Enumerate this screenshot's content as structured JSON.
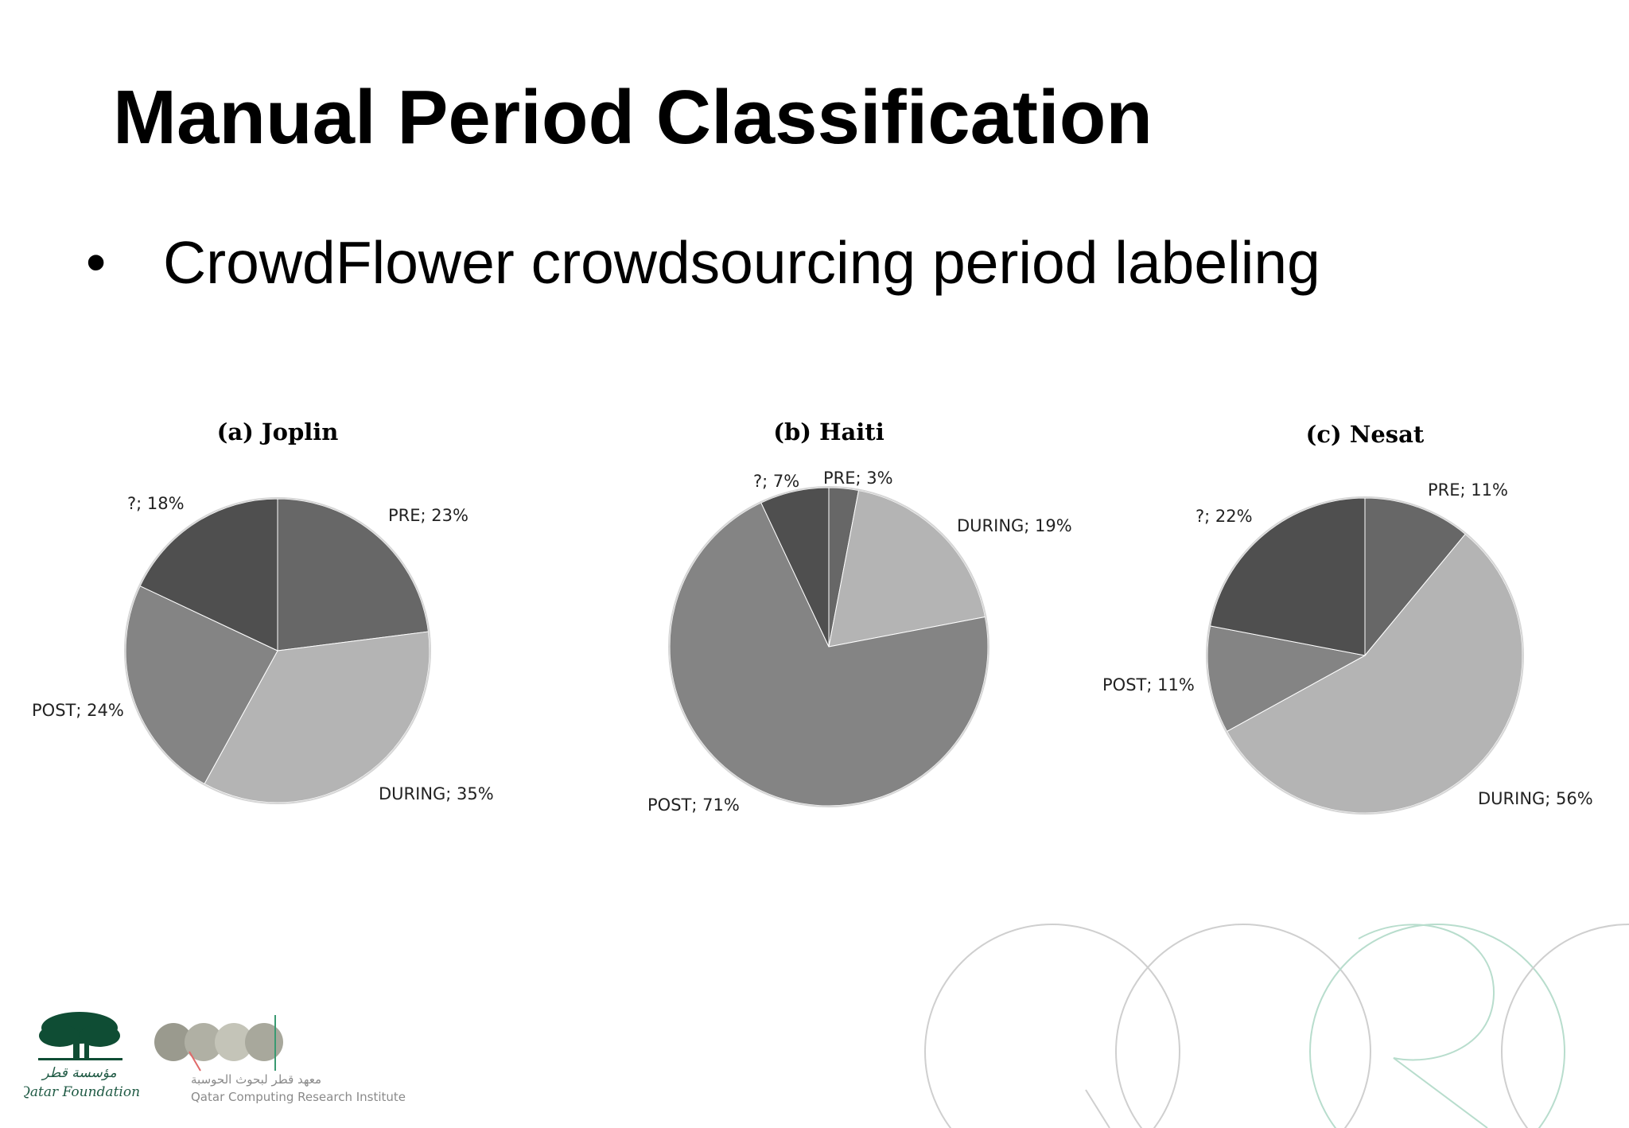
{
  "slide": {
    "title": "Manual Period Classification",
    "bullet": "CrowdFlower crowdsourcing period labeling"
  },
  "footer": {
    "qf_name": "Qatar Foundation",
    "qcri_name": "Qatar Computing Research Institute",
    "colors": {
      "qf_green": "#0f4d34",
      "qcri_grey": "#9a9a8e",
      "qcri_green": "#3a9a72"
    }
  },
  "colors": {
    "PRE": "#676767",
    "DURING": "#b4b4b4",
    "POST": "#848484",
    "?": "#4f4f4f"
  },
  "chart_data": [
    {
      "type": "pie",
      "title": "(a) Joplin",
      "categories": [
        "PRE",
        "DURING",
        "POST",
        "?"
      ],
      "values": [
        23,
        35,
        24,
        18
      ],
      "labels": [
        "PRE; 23%",
        "DURING; 35%",
        "POST; 24%",
        "?; 18%"
      ]
    },
    {
      "type": "pie",
      "title": "(b) Haiti",
      "categories": [
        "PRE",
        "DURING",
        "POST",
        "?"
      ],
      "values": [
        3,
        19,
        71,
        7
      ],
      "labels": [
        "PRE; 3%",
        "DURING; 19%",
        "POST; 71%",
        "?; 7%"
      ]
    },
    {
      "type": "pie",
      "title": "(c) Nesat",
      "categories": [
        "PRE",
        "DURING",
        "POST",
        "?"
      ],
      "values": [
        11,
        56,
        11,
        22
      ],
      "labels": [
        "PRE; 11%",
        "DURING; 56%",
        "POST; 11%",
        "?; 22%"
      ]
    }
  ]
}
